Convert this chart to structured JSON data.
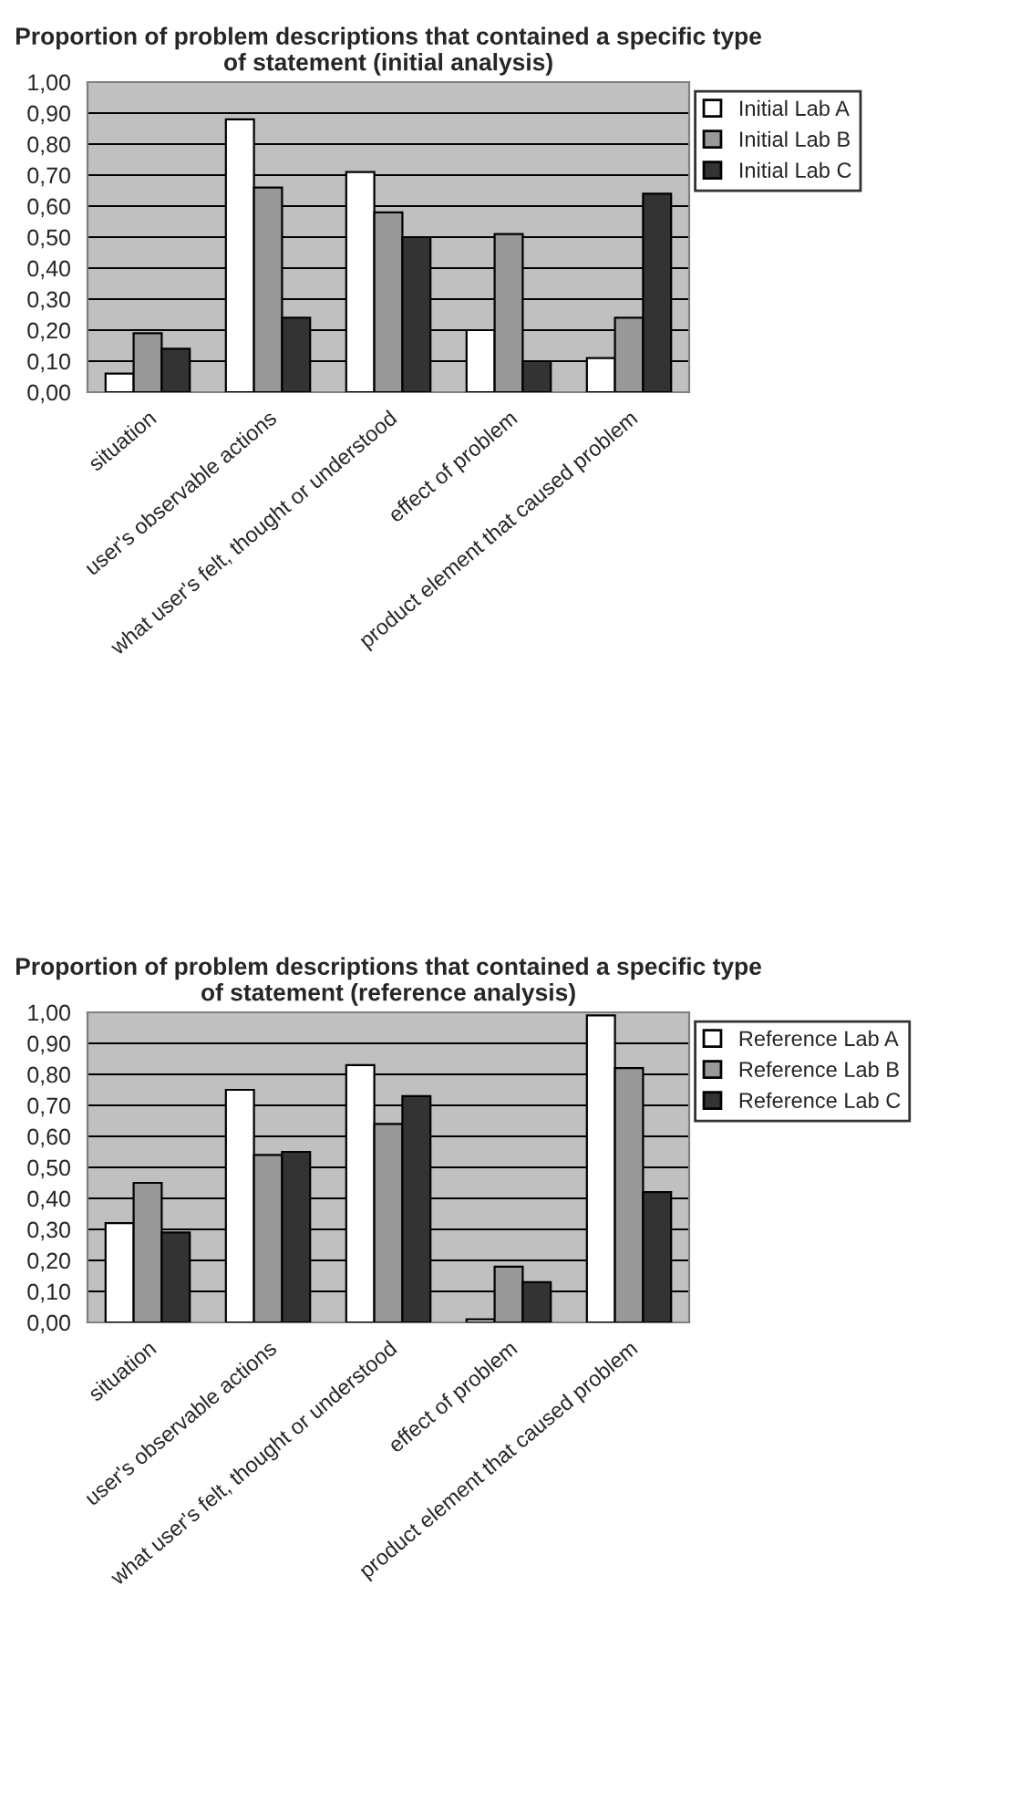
{
  "chart_data": [
    {
      "type": "bar",
      "title": "Proportion of problem descriptions that contained a specific type of statement (initial analysis)",
      "categories": [
        "situation",
        "user's observable actions",
        "what user's felt, thought or understood",
        "effect of problem",
        "product element that caused problem"
      ],
      "series": [
        {
          "name": "Initial Lab A",
          "color": "#ffffff",
          "values": [
            0.06,
            0.88,
            0.71,
            0.2,
            0.11
          ]
        },
        {
          "name": "Initial Lab B",
          "color": "#999999",
          "values": [
            0.19,
            0.66,
            0.58,
            0.51,
            0.24
          ]
        },
        {
          "name": "Initial Lab C",
          "color": "#333333",
          "values": [
            0.14,
            0.24,
            0.5,
            0.1,
            0.64
          ]
        }
      ],
      "ylim": [
        0,
        1
      ],
      "yticks": [
        {
          "value": 0,
          "label": "0,00"
        },
        {
          "value": 0.1,
          "label": "0,10"
        },
        {
          "value": 0.2,
          "label": "0,20"
        },
        {
          "value": 0.3,
          "label": "0,30"
        },
        {
          "value": 0.4,
          "label": "0,40"
        },
        {
          "value": 0.5,
          "label": "0,50"
        },
        {
          "value": 0.6,
          "label": "0,60"
        },
        {
          "value": 0.7,
          "label": "0,70"
        },
        {
          "value": 0.8,
          "label": "0,80"
        },
        {
          "value": 0.9,
          "label": "0,90"
        },
        {
          "value": 1,
          "label": "1,00"
        }
      ],
      "grid": "y",
      "legend": "top right"
    },
    {
      "type": "bar",
      "title": "Proportion of problem descriptions that contained a specific type of statement (reference analysis)",
      "categories": [
        "situation",
        "user's observable actions",
        "what user's felt, thought or understood",
        "effect of problem",
        "product element that caused problem"
      ],
      "series": [
        {
          "name": "Reference Lab A",
          "color": "#ffffff",
          "values": [
            0.32,
            0.75,
            0.83,
            0.01,
            0.99
          ]
        },
        {
          "name": "Reference Lab B",
          "color": "#999999",
          "values": [
            0.45,
            0.54,
            0.64,
            0.18,
            0.82
          ]
        },
        {
          "name": "Reference Lab C",
          "color": "#333333",
          "values": [
            0.29,
            0.55,
            0.73,
            0.13,
            0.42
          ]
        }
      ],
      "ylim": [
        0,
        1
      ],
      "yticks": [
        {
          "value": 0,
          "label": "0,00"
        },
        {
          "value": 0.1,
          "label": "0,10"
        },
        {
          "value": 0.2,
          "label": "0,20"
        },
        {
          "value": 0.3,
          "label": "0,30"
        },
        {
          "value": 0.4,
          "label": "0,40"
        },
        {
          "value": 0.5,
          "label": "0,50"
        },
        {
          "value": 0.6,
          "label": "0,60"
        },
        {
          "value": 0.7,
          "label": "0,70"
        },
        {
          "value": 0.8,
          "label": "0,80"
        },
        {
          "value": 0.9,
          "label": "0,90"
        },
        {
          "value": 1,
          "label": "1,00"
        }
      ],
      "grid": "y",
      "legend": "top right"
    }
  ]
}
